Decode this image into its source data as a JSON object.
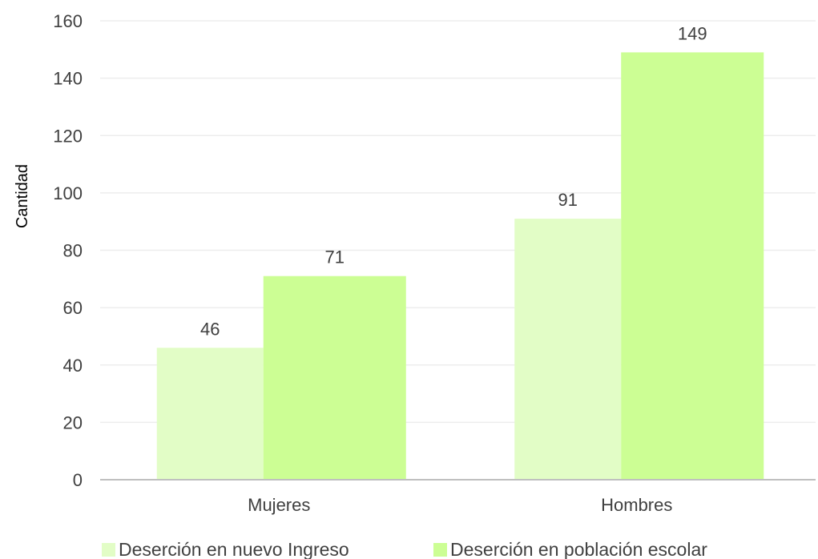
{
  "chart_data": {
    "type": "bar",
    "categories": [
      "Mujeres",
      "Hombres"
    ],
    "series": [
      {
        "name": "Deserción en nuevo Ingreso",
        "values": [
          46,
          91
        ],
        "color": "#e2fdc6"
      },
      {
        "name": "Deserción en población escolar",
        "values": [
          71,
          149
        ],
        "color": "#ccfe94"
      }
    ],
    "ylabel": "Cantidad",
    "xlabel": "",
    "ylim": [
      0,
      160
    ],
    "yticks": [
      0,
      20,
      40,
      60,
      80,
      100,
      120,
      140,
      160
    ],
    "grid": true,
    "legend": "bottom",
    "colors": {
      "gridline": "#ededed",
      "axis": "#bfbfbf",
      "text": "#404040"
    }
  }
}
